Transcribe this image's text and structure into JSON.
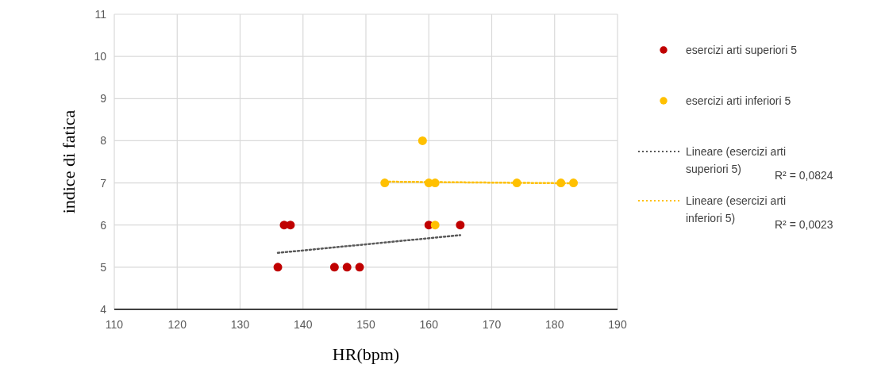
{
  "chart_data": {
    "type": "scatter",
    "xlabel": "HR(bpm)",
    "ylabel": "indice di fatica",
    "xlim": [
      110,
      190
    ],
    "xticks": [
      110,
      120,
      130,
      140,
      150,
      160,
      170,
      180,
      190
    ],
    "ylim": [
      4,
      11
    ],
    "yticks": [
      4,
      5,
      6,
      7,
      8,
      9,
      10,
      11
    ],
    "grid": true,
    "legend": "right",
    "series": [
      {
        "name": "esercizi arti superiori 5",
        "color": "#c00000",
        "marker": "circle",
        "x": [
          136,
          137,
          138,
          145,
          147,
          149,
          160,
          165
        ],
        "values": [
          5,
          6,
          6,
          5,
          5,
          5,
          6,
          6
        ]
      },
      {
        "name": "esercizi arti inferiori 5",
        "color": "#ffc000",
        "marker": "circle",
        "x": [
          153,
          159,
          160,
          161,
          161,
          174,
          181,
          183
        ],
        "values": [
          7,
          8,
          7,
          7,
          6,
          7,
          7,
          7
        ]
      },
      {
        "name": "Lineare (esercizi arti superiori 5)",
        "type": "line",
        "line_style": "dotted",
        "marker": "none",
        "color": "#595959",
        "x": [
          136,
          165
        ],
        "values": [
          5.34,
          5.76
        ]
      },
      {
        "name": "Lineare (esercizi arti inferiori 5)",
        "type": "line",
        "line_style": "dotted",
        "marker": "none",
        "color": "#ffc000",
        "x": [
          153,
          183
        ],
        "values": [
          7.03,
          6.99
        ]
      }
    ],
    "annotations": [
      "R² = 0,0824",
      "R² = 0,0023"
    ]
  }
}
